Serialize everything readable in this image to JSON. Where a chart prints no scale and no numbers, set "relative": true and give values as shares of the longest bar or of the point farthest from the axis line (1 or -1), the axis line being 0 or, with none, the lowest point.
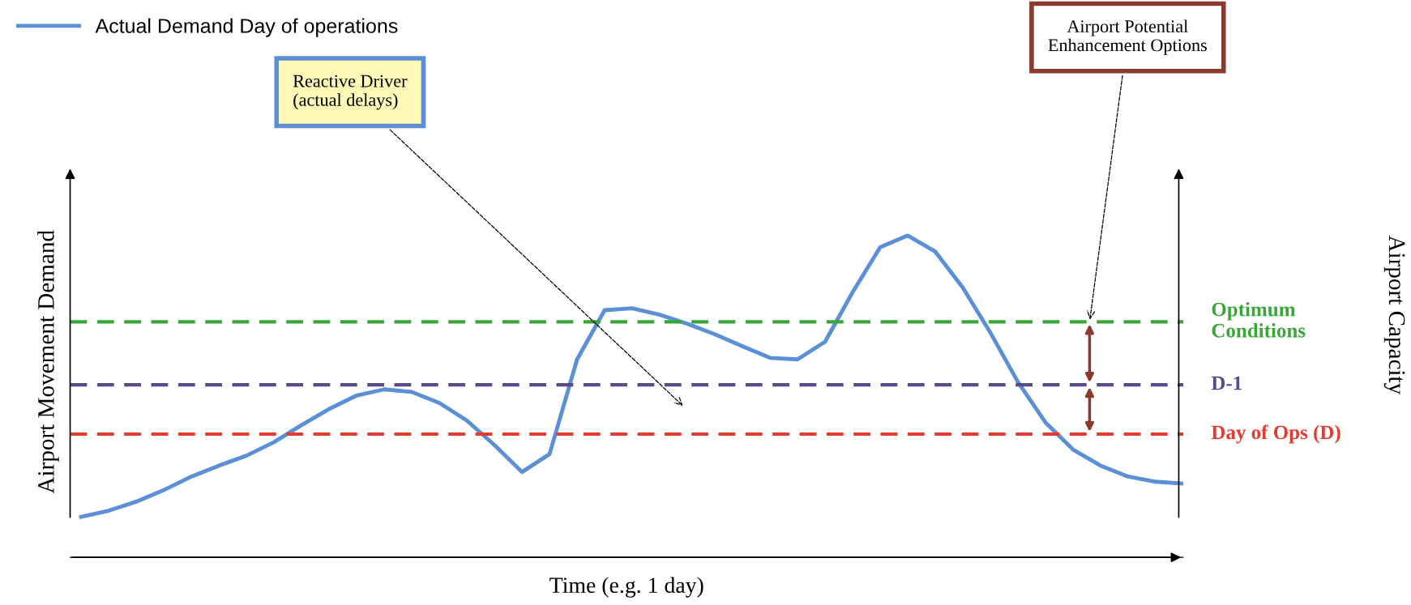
{
  "chart_data": {
    "type": "line",
    "relative": true,
    "xlabel": "Time (e.g. 1 day)",
    "ylabel": "Airport Movement Demand",
    "legend": "top left",
    "grid": false,
    "marker": "none",
    "line_style": "solid",
    "categories": [
      null,
      null,
      null,
      null,
      null,
      null,
      null,
      null,
      null,
      null,
      null,
      null,
      null,
      null,
      null,
      null,
      null,
      null,
      null,
      null,
      null,
      null,
      null,
      null,
      null,
      null,
      null,
      null,
      null,
      null,
      null,
      null,
      null,
      null,
      null,
      null,
      null,
      null,
      null,
      null,
      null
    ],
    "series": [
      {
        "name": "Actual Demand Day of operations",
        "color": "#5b8fd6",
        "values": [
          0.126,
          0.145,
          0.173,
          0.209,
          0.251,
          0.285,
          0.316,
          0.358,
          0.411,
          0.461,
          0.503,
          0.522,
          0.514,
          0.48,
          0.425,
          0.349,
          0.265,
          0.321,
          0.615,
          0.768,
          0.774,
          0.754,
          0.726,
          0.693,
          0.656,
          0.62,
          0.615,
          0.67,
          0.824,
          0.964,
          1,
          0.95,
          0.838,
          0.698,
          0.545,
          0.419,
          0.335,
          0.285,
          0.251,
          0.235,
          0.229
        ]
      }
    ],
    "ref_lines": [
      {
        "axis": "y",
        "value": 0.732,
        "label": "Optimum\nConditions",
        "color": "#3aa63a",
        "line_style": "dashed"
      },
      {
        "axis": "y",
        "value": 0.536,
        "label": "D-1",
        "color": "#5a4a8a",
        "line_style": "dashed"
      },
      {
        "axis": "y",
        "value": 0.383,
        "label": "Day of Ops (D)",
        "color": "#e8392e",
        "line_style": "dashed"
      }
    ],
    "annotations": [
      "Reactive Driver\n(actual delays)",
      "Airport Potential\nEnhancement Options",
      "Airport Capacity"
    ]
  }
}
